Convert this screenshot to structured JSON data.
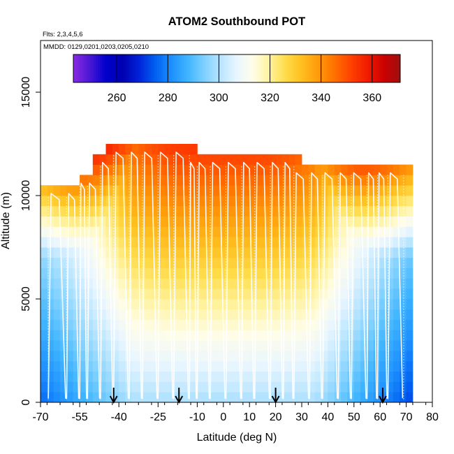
{
  "chart_data": {
    "type": "heatmap",
    "title": "ATOM2 Southbound POT",
    "subtitle_flights": "Flts: 2,3,4,5,6",
    "subtitle_dates": "MMDD: 0129,0201,0203,0205,0210",
    "xlabel": "Latitude (deg N)",
    "ylabel": "Altitude (m)",
    "xlim": [
      -70,
      80
    ],
    "ylim": [
      0,
      17500
    ],
    "xticks": [
      -70,
      -55,
      -40,
      -25,
      -10,
      0,
      10,
      20,
      30,
      40,
      50,
      60,
      70,
      80
    ],
    "xtick_labels": [
      "-70",
      "-55",
      "-40",
      "-25",
      "-10",
      "0",
      "10",
      "20",
      "30",
      "40",
      "50",
      "60",
      "70",
      "80"
    ],
    "yticks": [
      0,
      5000,
      10000,
      15000
    ],
    "ytick_labels": [
      "0",
      "5000",
      "10000",
      "15000"
    ],
    "colorbar": {
      "range": [
        243,
        371
      ],
      "ticks": [
        260,
        280,
        300,
        320,
        340,
        360
      ],
      "tick_labels": [
        "260",
        "280",
        "300",
        "320",
        "340",
        "360"
      ],
      "colors": [
        "#8a2be2",
        "#4b17d6",
        "#0000cd",
        "#0000b0",
        "#0022d8",
        "#005ff0",
        "#1e90ff",
        "#3fb4ff",
        "#7dd0ff",
        "#b9e5ff",
        "#e9f6ff",
        "#fffde8",
        "#fff29c",
        "#ffdc4a",
        "#ffbe1e",
        "#ff9a0a",
        "#ff7000",
        "#ff4000",
        "#f01c00",
        "#cc0000",
        "#9e1010"
      ]
    },
    "grid": {
      "lat_bin_deg": 2.5,
      "alt_bin_m": 500,
      "lat_range": [
        -70,
        72
      ],
      "top_altitude_profile": {
        "lat": [
          -70,
          -67.5,
          -65,
          -62.5,
          -60,
          -57.5,
          -55,
          -52.5,
          -50,
          -45,
          -40,
          -35,
          -30,
          -25,
          -20,
          -17.5,
          -12.5,
          -10,
          -5,
          0,
          5,
          10,
          15,
          20,
          25,
          30,
          35,
          40,
          45,
          50,
          55,
          60,
          65,
          70,
          72
        ],
        "alt_top": [
          10500,
          10500,
          10500,
          10500,
          10500,
          10500,
          11000,
          11000,
          12000,
          12500,
          12500,
          12500,
          12500,
          12500,
          12500,
          12500,
          12500,
          12000,
          12000,
          12000,
          12000,
          12000,
          12000,
          12000,
          12000,
          11500,
          11500,
          11500,
          11500,
          11500,
          11500,
          11500,
          11500,
          11500,
          11500
        ]
      }
    },
    "markers": {
      "type": "down-arrow",
      "lat": [
        -42,
        -17,
        20,
        61
      ]
    },
    "flight_tracks": {
      "description": "white vertical sawtooth profiles of the aircraft",
      "profile_lat": [
        -67,
        -60,
        -55,
        -52,
        -47,
        -42,
        -36,
        -31,
        -25,
        -19,
        -13,
        -10,
        -5,
        1,
        7,
        12,
        18,
        23,
        27,
        33,
        38,
        44,
        49,
        55,
        59,
        63,
        69
      ]
    }
  }
}
